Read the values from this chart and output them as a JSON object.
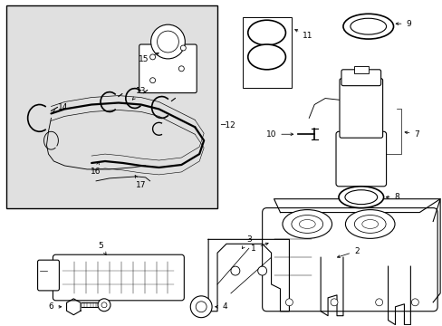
{
  "background_color": "#ffffff",
  "line_color": "#000000",
  "inset_bg": "#e8e8e8",
  "lw": 0.8,
  "fs": 6.5
}
